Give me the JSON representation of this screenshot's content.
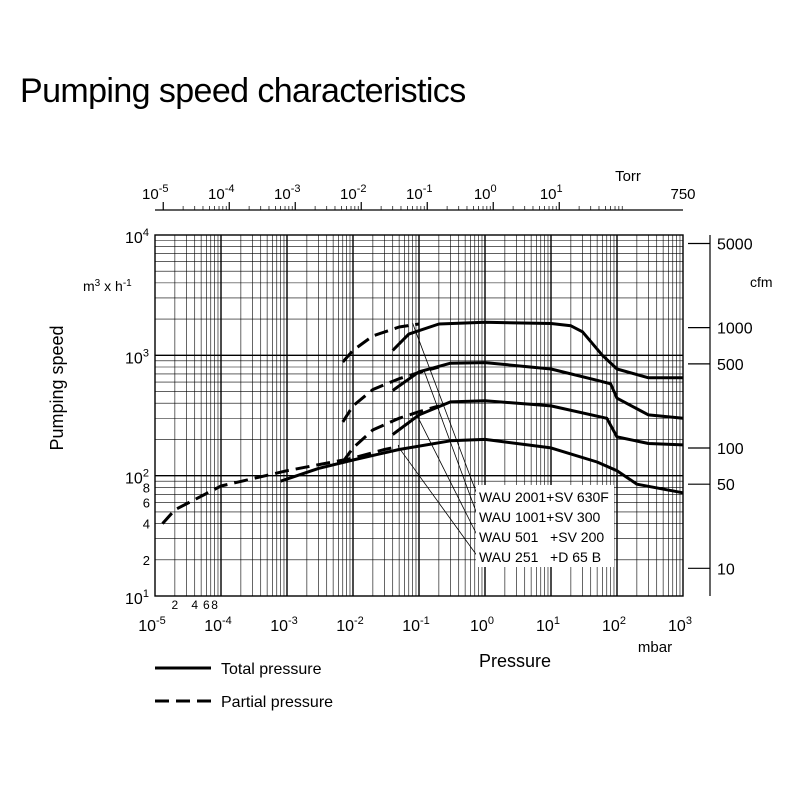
{
  "title": "Pumping speed characteristics",
  "chart_data": {
    "type": "line",
    "title": "Pumping speed characteristics",
    "xlabel": "Pressure",
    "x_unit": "mbar",
    "x_scale": "log",
    "xlim": [
      1e-05,
      1000
    ],
    "x_ticks": [
      {
        "base": "10",
        "exp": "-5"
      },
      {
        "base": "10",
        "exp": "-4"
      },
      {
        "base": "10",
        "exp": "-3"
      },
      {
        "base": "10",
        "exp": "-2"
      },
      {
        "base": "10",
        "exp": "-1"
      },
      {
        "base": "10",
        "exp": "0"
      },
      {
        "base": "10",
        "exp": "1"
      },
      {
        "base": "10",
        "exp": "2"
      },
      {
        "base": "10",
        "exp": "3"
      }
    ],
    "x_minor_labels": [
      {
        "value": 2e-05,
        "label": "2"
      },
      {
        "value": 4e-05,
        "label": "4"
      },
      {
        "value": 6e-05,
        "label": "6"
      },
      {
        "value": 8e-05,
        "label": "8"
      }
    ],
    "top_axis": {
      "unit": "Torr",
      "ticks": [
        {
          "base": "10",
          "exp": "-5"
        },
        {
          "base": "10",
          "exp": "-4"
        },
        {
          "base": "10",
          "exp": "-3"
        },
        {
          "base": "10",
          "exp": "-2"
        },
        {
          "base": "10",
          "exp": "-1"
        },
        {
          "base": "10",
          "exp": "0"
        },
        {
          "base": "10",
          "exp": "1"
        }
      ],
      "end_label": "750"
    },
    "ylabel": "Pumping speed",
    "y_unit": {
      "base": "m",
      "sup1": "3",
      "mid": " x h",
      "sup2": "-1"
    },
    "y_scale": "log",
    "ylim": [
      10,
      10000
    ],
    "y_ticks": [
      {
        "base": "10",
        "exp": "4"
      },
      {
        "base": "10",
        "exp": "3"
      },
      {
        "base": "10",
        "exp": "2"
      },
      {
        "base": "10",
        "exp": "1"
      }
    ],
    "y_minor_labels": [
      {
        "value": 80,
        "label": "8"
      },
      {
        "value": 60,
        "label": "6"
      },
      {
        "value": 40,
        "label": "4"
      },
      {
        "value": 20,
        "label": "2"
      }
    ],
    "right_axis": {
      "unit": "cfm",
      "ticks": [
        "5000",
        "1000",
        "500",
        "100",
        "50",
        "10"
      ]
    },
    "grid": true,
    "legend": {
      "position": "bottom-left",
      "entries": [
        {
          "label": "Total pressure",
          "style": "solid"
        },
        {
          "label": "Partial pressure",
          "style": "dashed"
        }
      ]
    },
    "annotations": [
      "WAU 2001+SV 630F",
      "WAU 1001+SV 300",
      "WAU 501   +SV 200",
      "WAU 251   +D 65 B"
    ],
    "series": [
      {
        "name": "WAU 2001+SV 630F",
        "style": "solid",
        "points": [
          [
            0.04,
            1100
          ],
          [
            0.07,
            1500
          ],
          [
            0.2,
            1820
          ],
          [
            1,
            1880
          ],
          [
            10,
            1840
          ],
          [
            20,
            1760
          ],
          [
            30,
            1570
          ],
          [
            60,
            1000
          ],
          [
            100,
            770
          ],
          [
            300,
            650
          ],
          [
            1000,
            650
          ]
        ]
      },
      {
        "name": "WAU 2001+SV 630F",
        "style": "dashed",
        "points": [
          [
            0.007,
            880
          ],
          [
            0.01,
            1100
          ],
          [
            0.02,
            1450
          ],
          [
            0.05,
            1720
          ],
          [
            0.1,
            1820
          ]
        ]
      },
      {
        "name": "WAU 1001+SV 300",
        "style": "solid",
        "points": [
          [
            0.04,
            510
          ],
          [
            0.1,
            730
          ],
          [
            0.3,
            860
          ],
          [
            1,
            870
          ],
          [
            10,
            770
          ],
          [
            50,
            620
          ],
          [
            80,
            580
          ],
          [
            100,
            440
          ],
          [
            300,
            320
          ],
          [
            1000,
            300
          ]
        ]
      },
      {
        "name": "WAU 1001+SV 300",
        "style": "dashed",
        "points": [
          [
            0.007,
            280
          ],
          [
            0.01,
            380
          ],
          [
            0.02,
            520
          ],
          [
            0.05,
            640
          ],
          [
            0.1,
            720
          ],
          [
            0.2,
            800
          ]
        ]
      },
      {
        "name": "WAU 501   +SV 200",
        "style": "solid",
        "points": [
          [
            0.04,
            220
          ],
          [
            0.1,
            320
          ],
          [
            0.3,
            410
          ],
          [
            1,
            420
          ],
          [
            10,
            380
          ],
          [
            70,
            300
          ],
          [
            100,
            210
          ],
          [
            300,
            185
          ],
          [
            1000,
            180
          ]
        ]
      },
      {
        "name": "WAU 501   +SV 200",
        "style": "dashed",
        "points": [
          [
            0.007,
            130
          ],
          [
            0.01,
            170
          ],
          [
            0.02,
            240
          ],
          [
            0.05,
            300
          ],
          [
            0.1,
            340
          ],
          [
            0.2,
            380
          ]
        ]
      },
      {
        "name": "WAU 251   +D 65 B",
        "style": "solid",
        "points": [
          [
            0.0008,
            90
          ],
          [
            0.003,
            115
          ],
          [
            0.01,
            135
          ],
          [
            0.05,
            165
          ],
          [
            0.3,
            195
          ],
          [
            1,
            200
          ],
          [
            10,
            170
          ],
          [
            50,
            130
          ],
          [
            100,
            110
          ],
          [
            200,
            85
          ],
          [
            1000,
            72
          ]
        ]
      },
      {
        "name": "WAU 251   +D 65 B",
        "style": "dashed",
        "points": [
          [
            1.3e-05,
            40
          ],
          [
            2e-05,
            52
          ],
          [
            0.0001,
            82
          ],
          [
            0.001,
            110
          ],
          [
            0.01,
            140
          ],
          [
            0.03,
            165
          ],
          [
            0.05,
            175
          ]
        ]
      }
    ]
  }
}
